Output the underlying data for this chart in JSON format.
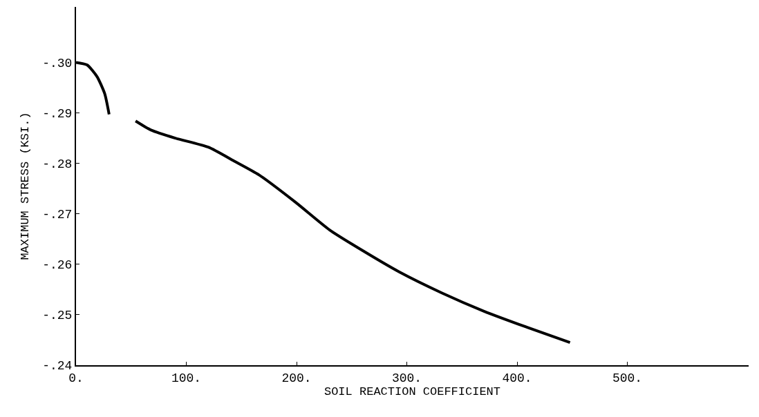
{
  "chart_data": {
    "type": "line",
    "xlabel": "SOIL REACTION COEFFICIENT",
    "ylabel": "MAXIMUM STRESS (KSI.)",
    "x": [
      0,
      10,
      19,
      26,
      30,
      42,
      54,
      68,
      90,
      120,
      143,
      166,
      199,
      230,
      260,
      293,
      332,
      370,
      408,
      448
    ],
    "series": [
      {
        "color": "#000000",
        "values": [
          -0.3,
          -0.2995,
          -0.2972,
          -0.2938,
          -0.2897,
          null,
          -0.2884,
          -0.2866,
          -0.285,
          -0.2832,
          -0.2805,
          -0.2777,
          -0.2723,
          -0.2668,
          -0.2627,
          -0.2585,
          -0.2543,
          -0.2507,
          -0.2476,
          -0.2445
        ]
      }
    ],
    "xlim": [
      0,
      610
    ],
    "xticks": [
      {
        "value": 0,
        "label": "0."
      },
      {
        "value": 100,
        "label": "100."
      },
      {
        "value": 200,
        "label": "200."
      },
      {
        "value": 300,
        "label": "300."
      },
      {
        "value": 400,
        "label": "400."
      },
      {
        "value": 500,
        "label": "500."
      }
    ],
    "ylim": [
      -0.24,
      -0.311
    ],
    "yticks": [
      {
        "value": -0.3,
        "label": "-.30"
      },
      {
        "value": -0.29,
        "label": "-.29"
      },
      {
        "value": -0.28,
        "label": "-.28"
      },
      {
        "value": -0.27,
        "label": "-.27"
      },
      {
        "value": -0.26,
        "label": "-.26"
      },
      {
        "value": -0.25,
        "label": "-.25"
      },
      {
        "value": -0.24,
        "label": "-.24"
      }
    ],
    "marker": "none",
    "line_style": "solid"
  }
}
